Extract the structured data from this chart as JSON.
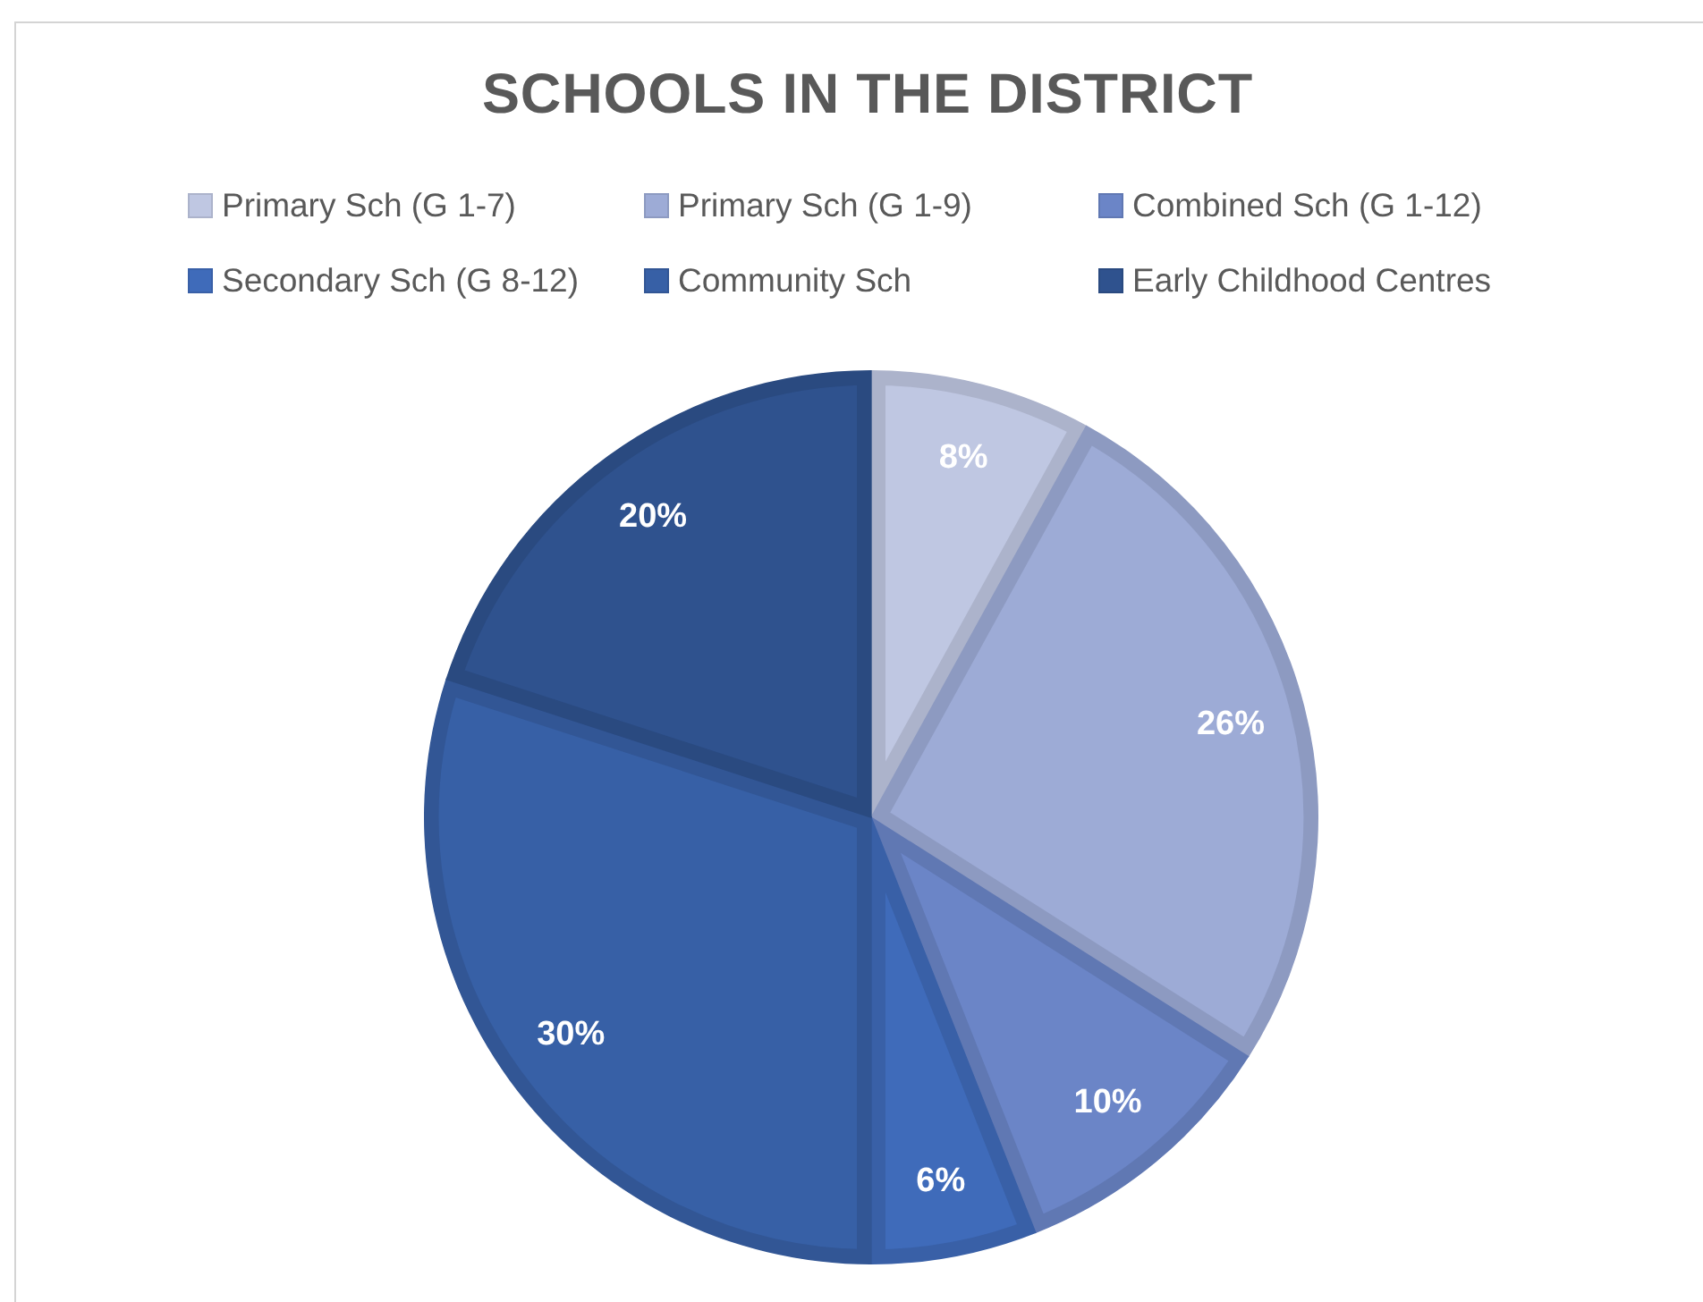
{
  "chart_data": {
    "type": "pie",
    "title": "SCHOOLS IN THE DISTRICT",
    "categories": [
      "Primary Sch (G 1-7)",
      "Primary Sch (G 1-9)",
      "Combined Sch (G 1-12)",
      "Secondary Sch (G 8-12)",
      "Community Sch",
      "Early Childhood Centres"
    ],
    "values": [
      8,
      26,
      10,
      6,
      30,
      20
    ],
    "value_labels": [
      "8%",
      "26%",
      "10%",
      "6%",
      "30%",
      "20%"
    ],
    "colors": [
      "#bfc7e2",
      "#9dabd6",
      "#6b85c7",
      "#3f6bba",
      "#3760a6",
      "#2f528e"
    ],
    "legend": "top"
  }
}
